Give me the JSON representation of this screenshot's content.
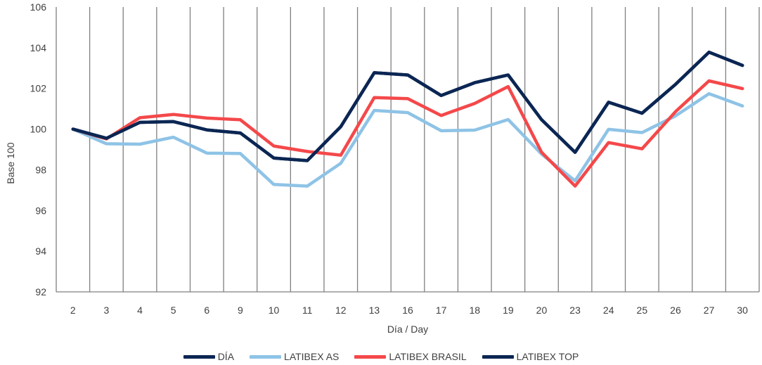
{
  "chart_data": {
    "type": "line",
    "xlabel": "Día / Day",
    "ylabel": "Base 100",
    "ylim": [
      92,
      106
    ],
    "yticks": [
      92,
      94,
      96,
      98,
      100,
      102,
      104,
      106
    ],
    "categories": [
      "2",
      "3",
      "4",
      "5",
      "6",
      "9",
      "10",
      "11",
      "12",
      "13",
      "16",
      "17",
      "18",
      "19",
      "20",
      "23",
      "24",
      "25",
      "26",
      "27",
      "30"
    ],
    "vertical_gridlines": true,
    "legend_position": "bottom",
    "series": [
      {
        "name": "DÍA",
        "color": "#0b2653",
        "values": [
          100.0,
          99.55,
          100.33,
          100.37,
          99.96,
          99.81,
          98.58,
          98.45,
          100.12,
          102.77,
          102.66,
          101.65,
          102.28,
          102.66,
          100.46,
          98.86,
          101.32,
          100.78,
          102.2,
          103.78,
          103.13
        ]
      },
      {
        "name": "LATIBEX AS",
        "color": "#8ec3e6",
        "values": [
          100.0,
          99.28,
          99.26,
          99.6,
          98.82,
          98.8,
          97.28,
          97.2,
          98.32,
          100.92,
          100.81,
          99.92,
          99.95,
          100.47,
          98.77,
          97.46,
          99.99,
          99.83,
          100.65,
          101.74,
          101.14
        ]
      },
      {
        "name": "LATIBEX BRASIL",
        "color": "#f4484a",
        "values": [
          100.0,
          99.52,
          100.56,
          100.72,
          100.54,
          100.46,
          99.17,
          98.9,
          98.72,
          101.55,
          101.5,
          100.67,
          101.26,
          102.09,
          98.86,
          97.2,
          99.34,
          99.03,
          100.86,
          102.37,
          101.99
        ]
      },
      {
        "name": "LATIBEX TOP",
        "color": "#0b2653",
        "values": [
          100.0,
          99.55,
          100.33,
          100.37,
          99.96,
          99.81,
          98.58,
          98.45,
          100.12,
          102.77,
          102.66,
          101.65,
          102.28,
          102.66,
          100.46,
          98.86,
          101.32,
          100.78,
          102.2,
          103.78,
          103.13
        ]
      }
    ]
  }
}
